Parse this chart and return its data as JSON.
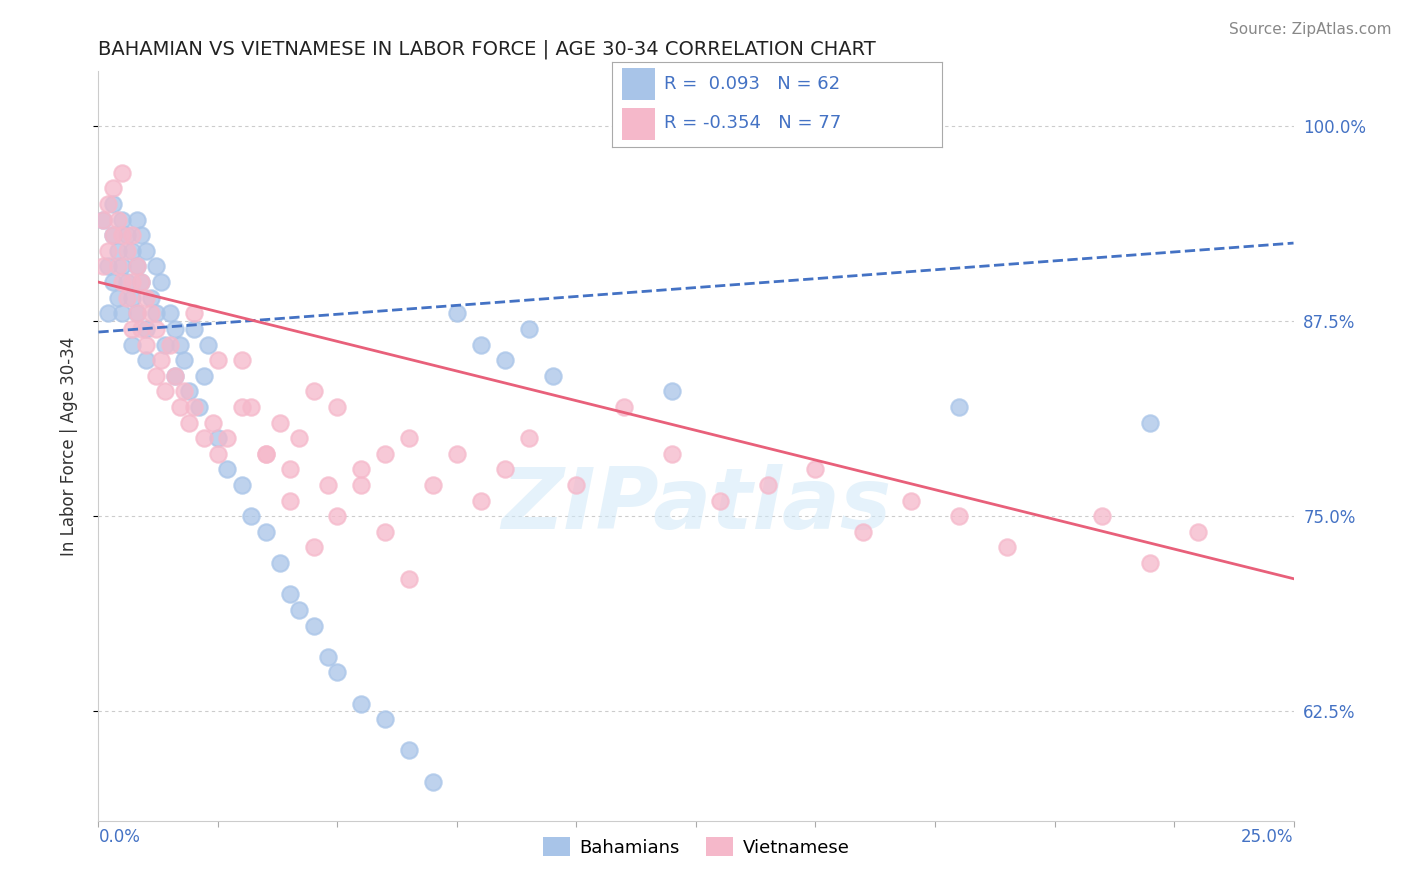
{
  "title": "BAHAMIAN VS VIETNAMESE IN LABOR FORCE | AGE 30-34 CORRELATION CHART",
  "source": "Source: ZipAtlas.com",
  "ylabel": "In Labor Force | Age 30-34",
  "right_yticks": [
    0.625,
    0.75,
    0.875,
    1.0
  ],
  "right_yticklabels": [
    "62.5%",
    "75.0%",
    "87.5%",
    "100.0%"
  ],
  "xmin": 0.0,
  "xmax": 0.25,
  "ymin": 0.555,
  "ymax": 1.035,
  "blue_color": "#a8c4e8",
  "pink_color": "#f5b8ca",
  "trendline_blue": "#4472c4",
  "trendline_pink": "#e8607a",
  "legend_line1": "R =  0.093   N = 62",
  "legend_line2": "R = -0.354   N = 77",
  "watermark": "ZIPatlas",
  "title_fontsize": 14,
  "tick_fontsize": 12,
  "source_fontsize": 11,
  "blue_x": [
    0.001,
    0.002,
    0.002,
    0.003,
    0.003,
    0.003,
    0.004,
    0.004,
    0.005,
    0.005,
    0.005,
    0.006,
    0.006,
    0.007,
    0.007,
    0.007,
    0.008,
    0.008,
    0.008,
    0.009,
    0.009,
    0.01,
    0.01,
    0.01,
    0.011,
    0.012,
    0.012,
    0.013,
    0.014,
    0.015,
    0.016,
    0.016,
    0.017,
    0.018,
    0.019,
    0.02,
    0.021,
    0.022,
    0.023,
    0.025,
    0.027,
    0.03,
    0.032,
    0.035,
    0.038,
    0.04,
    0.042,
    0.045,
    0.048,
    0.05,
    0.055,
    0.06,
    0.065,
    0.07,
    0.075,
    0.08,
    0.085,
    0.09,
    0.095,
    0.12,
    0.18,
    0.22
  ],
  "blue_y": [
    0.94,
    0.91,
    0.88,
    0.95,
    0.93,
    0.9,
    0.92,
    0.89,
    0.91,
    0.94,
    0.88,
    0.93,
    0.9,
    0.89,
    0.92,
    0.86,
    0.94,
    0.91,
    0.88,
    0.9,
    0.93,
    0.92,
    0.87,
    0.85,
    0.89,
    0.88,
    0.91,
    0.9,
    0.86,
    0.88,
    0.87,
    0.84,
    0.86,
    0.85,
    0.83,
    0.87,
    0.82,
    0.84,
    0.86,
    0.8,
    0.78,
    0.77,
    0.75,
    0.74,
    0.72,
    0.7,
    0.69,
    0.68,
    0.66,
    0.65,
    0.63,
    0.62,
    0.6,
    0.58,
    0.88,
    0.86,
    0.85,
    0.87,
    0.84,
    0.83,
    0.82,
    0.81
  ],
  "pink_x": [
    0.001,
    0.001,
    0.002,
    0.002,
    0.003,
    0.003,
    0.004,
    0.004,
    0.005,
    0.005,
    0.005,
    0.006,
    0.006,
    0.007,
    0.007,
    0.007,
    0.008,
    0.008,
    0.009,
    0.009,
    0.01,
    0.01,
    0.011,
    0.012,
    0.012,
    0.013,
    0.014,
    0.015,
    0.016,
    0.017,
    0.018,
    0.019,
    0.02,
    0.022,
    0.024,
    0.025,
    0.027,
    0.03,
    0.032,
    0.035,
    0.038,
    0.04,
    0.042,
    0.045,
    0.048,
    0.05,
    0.055,
    0.06,
    0.065,
    0.07,
    0.075,
    0.08,
    0.085,
    0.09,
    0.1,
    0.11,
    0.12,
    0.13,
    0.15,
    0.18,
    0.02,
    0.025,
    0.03,
    0.035,
    0.04,
    0.045,
    0.05,
    0.055,
    0.06,
    0.065,
    0.14,
    0.16,
    0.17,
    0.19,
    0.21,
    0.22,
    0.23
  ],
  "pink_y": [
    0.94,
    0.91,
    0.95,
    0.92,
    0.96,
    0.93,
    0.94,
    0.91,
    0.93,
    0.97,
    0.9,
    0.92,
    0.89,
    0.93,
    0.9,
    0.87,
    0.91,
    0.88,
    0.9,
    0.87,
    0.89,
    0.86,
    0.88,
    0.87,
    0.84,
    0.85,
    0.83,
    0.86,
    0.84,
    0.82,
    0.83,
    0.81,
    0.82,
    0.8,
    0.81,
    0.79,
    0.8,
    0.85,
    0.82,
    0.79,
    0.81,
    0.78,
    0.8,
    0.83,
    0.77,
    0.82,
    0.78,
    0.79,
    0.8,
    0.77,
    0.79,
    0.76,
    0.78,
    0.8,
    0.77,
    0.82,
    0.79,
    0.76,
    0.78,
    0.75,
    0.88,
    0.85,
    0.82,
    0.79,
    0.76,
    0.73,
    0.75,
    0.77,
    0.74,
    0.71,
    0.77,
    0.74,
    0.76,
    0.73,
    0.75,
    0.72,
    0.74
  ],
  "blue_trend_x0": 0.0,
  "blue_trend_x1": 0.25,
  "blue_trend_y0": 0.868,
  "blue_trend_y1": 0.925,
  "pink_trend_x0": 0.0,
  "pink_trend_x1": 0.25,
  "pink_trend_y0": 0.9,
  "pink_trend_y1": 0.71
}
